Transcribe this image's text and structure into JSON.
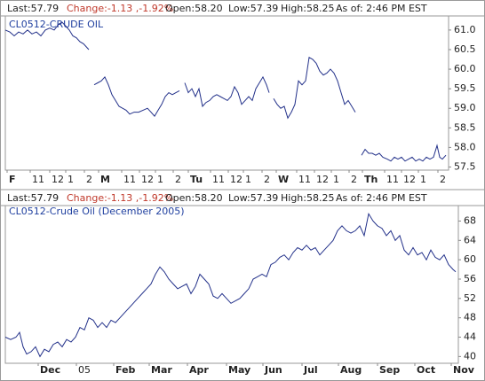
{
  "chart_data": [
    {
      "type": "line",
      "header": [
        "Last:57.79",
        "Change:-1.13 ,-1.92%",
        "Open:58.20",
        "Low:57.39",
        "High:58.25",
        "As of: 2:46 PM EST"
      ],
      "title": "CL0512-CRUDE OIL",
      "color": "#23318a",
      "x": [
        0,
        5,
        10,
        15,
        20,
        25,
        30,
        35,
        40,
        45,
        50,
        55,
        60,
        64,
        68,
        72,
        76,
        80,
        84,
        88,
        94,
        97,
        100,
        104,
        108,
        112,
        116,
        120,
        124,
        128,
        132,
        136,
        140,
        145,
        150,
        155,
        160,
        164,
        168,
        172,
        176,
        180,
        184,
        188,
        192,
        196,
        199,
        202,
        206,
        210,
        214,
        218,
        222,
        226,
        230,
        234,
        238,
        242,
        246,
        250,
        254,
        258,
        262,
        266,
        270,
        274,
        278,
        282,
        286,
        290,
        294,
        297,
        300,
        302,
        306,
        310,
        314,
        318,
        322,
        326,
        330,
        334,
        338,
        342,
        346,
        350,
        354,
        358,
        362,
        366,
        370,
        374,
        378,
        382,
        386,
        390,
        394,
        398,
        401,
        405,
        409,
        413,
        417,
        421,
        425,
        430,
        434,
        438,
        442,
        446,
        450,
        454,
        458,
        462,
        466,
        470,
        474,
        478,
        482,
        486,
        489,
        492,
        496
      ],
      "values": [
        61.0,
        60.95,
        60.85,
        60.95,
        60.9,
        61.0,
        60.9,
        60.95,
        60.85,
        61.0,
        61.05,
        61.0,
        61.15,
        61.2,
        61.1,
        61.0,
        60.85,
        60.8,
        60.7,
        60.65,
        60.5,
        null,
        59.6,
        59.65,
        59.7,
        59.8,
        59.6,
        59.35,
        59.2,
        59.05,
        59.0,
        58.95,
        58.85,
        58.9,
        58.9,
        58.95,
        59.0,
        58.9,
        58.8,
        58.95,
        59.1,
        59.3,
        59.4,
        59.35,
        59.4,
        59.45,
        null,
        59.65,
        59.4,
        59.5,
        59.3,
        59.5,
        59.05,
        59.15,
        59.2,
        59.3,
        59.35,
        59.3,
        59.25,
        59.2,
        59.3,
        59.55,
        59.4,
        59.1,
        59.2,
        59.3,
        59.2,
        59.5,
        59.65,
        59.8,
        59.6,
        59.4,
        null,
        59.25,
        59.1,
        59.0,
        59.05,
        58.75,
        58.9,
        59.1,
        59.7,
        59.6,
        59.7,
        60.3,
        60.25,
        60.15,
        59.95,
        59.85,
        59.9,
        60.0,
        59.9,
        59.7,
        59.4,
        59.1,
        59.2,
        59.05,
        58.9,
        null,
        57.8,
        57.95,
        57.85,
        57.85,
        57.8,
        57.85,
        57.75,
        57.7,
        57.65,
        57.75,
        57.7,
        57.75,
        57.65,
        57.7,
        57.75,
        57.65,
        57.7,
        57.65,
        57.75,
        57.7,
        57.75,
        58.05,
        57.75,
        57.7,
        57.8
      ],
      "xlim": [
        0,
        499
      ],
      "xticks": [
        {
          "value": 2,
          "label": "F"
        },
        {
          "value": 28,
          "label": "11"
        },
        {
          "value": 50,
          "label": "12"
        },
        {
          "value": 68,
          "label": "1"
        },
        {
          "value": 89,
          "label": "2"
        },
        {
          "value": 105,
          "label": "M"
        },
        {
          "value": 131,
          "label": "11"
        },
        {
          "value": 151,
          "label": "12"
        },
        {
          "value": 169,
          "label": "1"
        },
        {
          "value": 189,
          "label": "2"
        },
        {
          "value": 206,
          "label": "Tu"
        },
        {
          "value": 231,
          "label": "11"
        },
        {
          "value": 251,
          "label": "12"
        },
        {
          "value": 268,
          "label": "1"
        },
        {
          "value": 289,
          "label": "2"
        },
        {
          "value": 305,
          "label": "W"
        },
        {
          "value": 328,
          "label": "11"
        },
        {
          "value": 348,
          "label": "12"
        },
        {
          "value": 367,
          "label": "1"
        },
        {
          "value": 387,
          "label": "2"
        },
        {
          "value": 402,
          "label": "Th"
        },
        {
          "value": 427,
          "label": "11"
        },
        {
          "value": 446,
          "label": "12"
        },
        {
          "value": 465,
          "label": "1"
        },
        {
          "value": 487,
          "label": "2"
        }
      ],
      "ylim": [
        57.42,
        61.36
      ],
      "yticks": [
        {
          "value": 57.5,
          "label": "57.5"
        },
        {
          "value": 58,
          "label": "58.0"
        },
        {
          "value": 58.5,
          "label": "58.5"
        },
        {
          "value": 59,
          "label": "59.0"
        },
        {
          "value": 59.5,
          "label": "59.5"
        },
        {
          "value": 60,
          "label": "60.0"
        },
        {
          "value": 60.5,
          "label": "60.5"
        },
        {
          "value": 61,
          "label": "61.0"
        }
      ],
      "grid": false
    },
    {
      "type": "line",
      "header": [
        "Last:57.79",
        "Change:-1.13 ,-1.92%",
        "Open:58.20",
        "Low:57.39",
        "High:58.25",
        "As of: 2:46 PM EST"
      ],
      "title": "CL0512-Crude Oil (December 2005)",
      "color": "#23318a",
      "x": [
        0,
        6,
        12,
        16,
        20,
        24,
        29,
        34,
        39,
        44,
        49,
        54,
        59,
        64,
        69,
        74,
        79,
        84,
        89,
        94,
        99,
        104,
        109,
        114,
        119,
        124,
        129,
        134,
        139,
        144,
        149,
        154,
        159,
        164,
        169,
        174,
        179,
        184,
        189,
        194,
        199,
        204,
        209,
        214,
        219,
        224,
        229,
        234,
        239,
        244,
        249,
        254,
        259,
        264,
        269,
        274,
        279,
        284,
        289,
        294,
        299,
        304,
        309,
        314,
        319,
        324,
        329,
        334,
        339,
        344,
        349,
        354,
        359,
        364,
        369,
        374,
        379,
        384,
        389,
        394,
        399,
        404,
        409,
        414,
        419,
        424,
        429,
        434,
        439,
        444,
        449,
        454,
        459,
        464,
        469,
        474,
        479,
        484,
        489,
        494,
        499,
        504,
        507
      ],
      "values": [
        44,
        43.5,
        44,
        45,
        42,
        40.5,
        41,
        42,
        40,
        41.5,
        41,
        42.5,
        43,
        42,
        43.5,
        43,
        44,
        46,
        45.5,
        48,
        47.5,
        46,
        47,
        46,
        47.5,
        47,
        48,
        49,
        50,
        51,
        52,
        53,
        54,
        55,
        57,
        58.5,
        57.5,
        56,
        55,
        54,
        54.5,
        55,
        53,
        54.5,
        57,
        56,
        55,
        52.5,
        52,
        53,
        52,
        51,
        51.5,
        52,
        53,
        54,
        56,
        56.5,
        57,
        56.5,
        59,
        59.5,
        60.5,
        61,
        60,
        61.5,
        62.5,
        62,
        63,
        62,
        62.5,
        61,
        62,
        63,
        64,
        66,
        67,
        66,
        65.5,
        66,
        67,
        65,
        69.5,
        68,
        67,
        66.5,
        65,
        66,
        64,
        65,
        62,
        61,
        62.5,
        61,
        61.5,
        60,
        62,
        60.5,
        60,
        61,
        59,
        58,
        57.5
      ],
      "xlim": [
        0,
        510
      ],
      "xticks": [
        {
          "value": 37,
          "label": "Dec"
        },
        {
          "value": 80,
          "label": "05"
        },
        {
          "value": 122,
          "label": "Feb"
        },
        {
          "value": 162,
          "label": "Mar"
        },
        {
          "value": 205,
          "label": "Apr"
        },
        {
          "value": 249,
          "label": "May"
        },
        {
          "value": 290,
          "label": "Jun"
        },
        {
          "value": 334,
          "label": "Jul"
        },
        {
          "value": 375,
          "label": "Aug"
        },
        {
          "value": 419,
          "label": "Sep"
        },
        {
          "value": 461,
          "label": "Oct"
        },
        {
          "value": 502,
          "label": "Nov"
        }
      ],
      "ylim": [
        38.6,
        71.2
      ],
      "yticks": [
        40,
        44,
        48,
        52,
        56,
        60,
        64,
        68
      ],
      "grid": false
    }
  ]
}
